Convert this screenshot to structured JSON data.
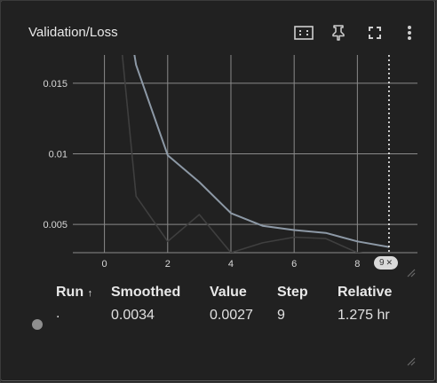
{
  "card": {
    "title": "Validation/Loss"
  },
  "toolbar": {
    "fit_domain_icon": "fit-domain-icon",
    "pin_icon": "pin-icon",
    "fullscreen_icon": "fullscreen-icon",
    "more_icon": "more-vert-icon"
  },
  "chart_data": {
    "type": "line",
    "title": "Validation/Loss",
    "xlabel": "",
    "ylabel": "",
    "x_ticks": [
      "0",
      "2",
      "4",
      "6",
      "8"
    ],
    "y_ticks": [
      "0.005",
      "0.01",
      "0.015"
    ],
    "xlim": [
      -1,
      9.9
    ],
    "ylim": [
      0.003,
      0.017
    ],
    "grid": true,
    "series": [
      {
        "role": "raw",
        "color": "#3f3f3f",
        "x": [
          0,
          1,
          2,
          3,
          4,
          5,
          6,
          7,
          8,
          9
        ],
        "y": [
          0.03,
          0.007,
          0.0038,
          0.0057,
          0.003,
          0.0037,
          0.0041,
          0.004,
          0.003,
          0.0027
        ]
      },
      {
        "role": "smoothed",
        "color": "#8d99a6",
        "x": [
          0,
          1,
          2,
          3,
          4,
          5,
          6,
          7,
          8,
          9
        ],
        "y": [
          0.03,
          0.0163,
          0.0099,
          0.008,
          0.0058,
          0.0049,
          0.0046,
          0.0044,
          0.0038,
          0.0034
        ]
      }
    ],
    "hover_step": 9
  },
  "hover_badge": {
    "step": "9",
    "close_glyph": "✕"
  },
  "table": {
    "headers": {
      "run": "Run",
      "sort_glyph": "↑",
      "smoothed": "Smoothed",
      "value": "Value",
      "step": "Step",
      "relative": "Relative"
    },
    "rows": [
      {
        "run": ".",
        "smoothed": "0.0034",
        "value": "0.0027",
        "step": "9",
        "relative": "1.275 hr",
        "dot_color": "#8e8e8e"
      }
    ]
  }
}
